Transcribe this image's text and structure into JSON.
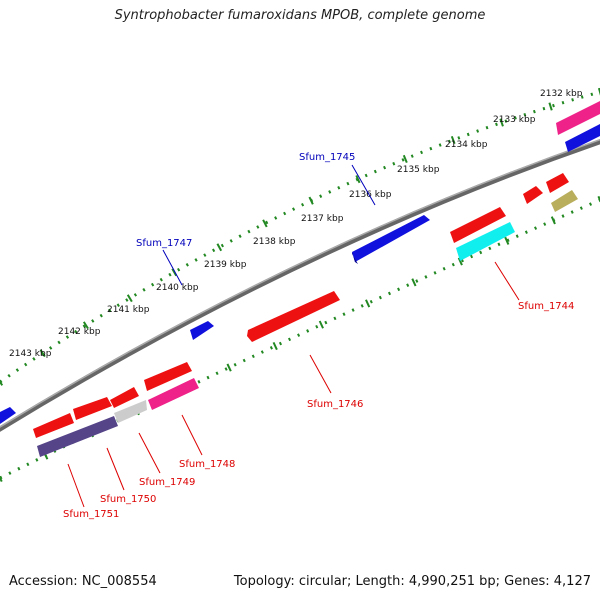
{
  "title": "Syntrophobacter fumaroxidans MPOB, complete genome",
  "footer": {
    "accession": "Accession: NC_008554",
    "topology": "Topology: circular; Length: 4,990,251 bp; Genes: 4,127"
  },
  "scale_labels": [
    "2132 kbp",
    "2133 kbp",
    "2134 kbp",
    "2135 kbp",
    "2136 kbp",
    "2137 kbp",
    "2138 kbp",
    "2139 kbp",
    "2140 kbp",
    "2141 kbp",
    "2142 kbp",
    "2143 kbp"
  ],
  "colors": {
    "red": "#ee1111",
    "blue": "#1111dd",
    "magenta": "#ee2288",
    "cyan": "#11eeee",
    "gray": "#cccccc",
    "olive": "#b8ae5c",
    "navy": "#554488",
    "backbone": "#888888",
    "ticks": "#228822",
    "label_red": "#dd0000",
    "label_blue": "#0000bb"
  },
  "gene_labels": {
    "sfum_1745": "Sfum_1745",
    "sfum_1747": "Sfum_1747",
    "sfum_1744": "Sfum_1744",
    "sfum_1746": "Sfum_1746",
    "sfum_1748": "Sfum_1748",
    "sfum_1749": "Sfum_1749",
    "sfum_1750": "Sfum_1750",
    "sfum_1751": "Sfum_1751"
  }
}
